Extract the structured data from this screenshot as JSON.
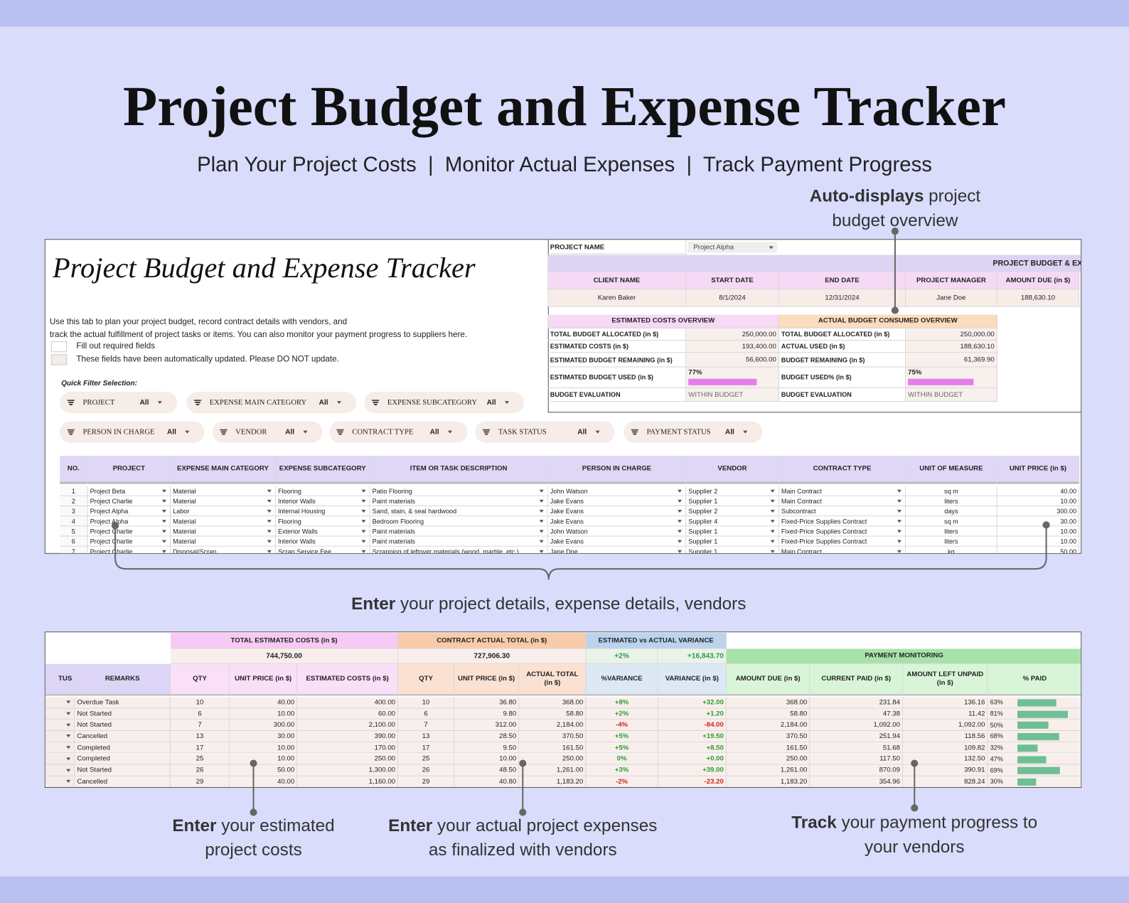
{
  "header": {
    "title": "Project Budget and Expense Tracker",
    "subtitle": "Plan Your Project Costs  |  Monitor Actual Expenses  |  Track Payment Progress"
  },
  "callouts": [
    {
      "bold": "Auto-displays",
      "lines": [
        "project",
        "budget overview"
      ]
    },
    {
      "bold": "Enter",
      "lines": [
        "your project details, expense details, vendors"
      ]
    },
    {
      "bold": "Enter",
      "lines": [
        "your estimated",
        "project costs"
      ]
    },
    {
      "bold": "Enter",
      "lines": [
        "your actual project expenses",
        "as finalized with vendors"
      ]
    },
    {
      "bold": "Track",
      "lines": [
        "your payment progress to",
        "your vendors"
      ]
    }
  ],
  "sheet1": {
    "title": "Project Budget and Expense Tracker",
    "instructions": [
      "Use this tab to plan your project budget, record contract details with vendors, and",
      "track the actual fulfillment of project tasks or items. You can also monitor your payment progress to suppliers here."
    ],
    "legend": [
      "Fill out required fields",
      "These fields have been automatically updated. Please DO NOT update."
    ],
    "filter_label": "Quick Filter Selection:",
    "filters": [
      {
        "label": "PROJECT",
        "value": "All"
      },
      {
        "label": "EXPENSE MAIN CATEGORY",
        "value": "All"
      },
      {
        "label": "EXPENSE SUBCATEGORY",
        "value": "All"
      },
      {
        "label": "PERSON IN CHARGE",
        "value": "All"
      },
      {
        "label": "VENDOR",
        "value": "All"
      },
      {
        "label": "CONTRACT TYPE",
        "value": "All"
      },
      {
        "label": "TASK STATUS",
        "value": "All"
      },
      {
        "label": "PAYMENT STATUS",
        "value": "All"
      }
    ],
    "project_name": {
      "label": "PROJECT NAME",
      "value": "Project Alpha"
    },
    "banner": "PROJECT BUDGET & EX",
    "info": {
      "headers": [
        "CLIENT NAME",
        "START DATE",
        "END DATE",
        "PROJECT MANAGER",
        "AMOUNT DUE (in $)"
      ],
      "values": [
        "Karen Baker",
        "8/1/2024",
        "12/31/2024",
        "Jane Doe",
        "188,630.10"
      ]
    },
    "estimated": {
      "title": "ESTIMATED COSTS OVERVIEW",
      "rows": [
        [
          "TOTAL BUDGET ALLOCATED (in $)",
          "250,000.00"
        ],
        [
          "ESTIMATED COSTS (in $)",
          "193,400.00"
        ],
        [
          "ESTIMATED BUDGET REMAINING (in $)",
          "56,600.00"
        ],
        [
          "ESTIMATED BUDGET USED (in $)",
          {
            "value": 77,
            "label": "77%"
          }
        ],
        [
          "BUDGET EVALUATION",
          "WITHIN BUDGET"
        ]
      ]
    },
    "actual": {
      "title": "ACTUAL BUDGET CONSUMED OVERVIEW",
      "rows": [
        [
          "TOTAL BUDGET ALLOCATED (in $)",
          "250,000.00"
        ],
        [
          "ACTUAL USED (in $)",
          "188,630.10"
        ],
        [
          "BUDGET REMAINING (in $)",
          "61,369.90"
        ],
        [
          "BUDGET USED% (in $)",
          {
            "value": 75,
            "label": "75%"
          }
        ],
        [
          "BUDGET EVALUATION",
          "WITHIN BUDGET"
        ]
      ]
    },
    "table": {
      "headers": [
        "NO.",
        "PROJECT",
        "EXPENSE MAIN CATEGORY",
        "EXPENSE SUBCATEGORY",
        "ITEM OR TASK DESCRIPTION",
        "PERSON IN CHARGE",
        "VENDOR",
        "CONTRACT TYPE",
        "UNIT OF MEASURE",
        "UNIT PRICE (in $)"
      ],
      "rows": [
        [
          1,
          "Project Beta",
          "Material",
          "Flooring",
          "Patio Flooring",
          "John Watson",
          "Supplier 2",
          "Main Contract",
          "sq m",
          "40.00"
        ],
        [
          2,
          "Project Charlie",
          "Material",
          "Interior Walls",
          "Paint materials",
          "Jake Evans",
          "Supplier 1",
          "Main Contract",
          "liters",
          "10.00"
        ],
        [
          3,
          "Project Alpha",
          "Labor",
          "Internal Housing",
          "Sand, stain, & seal hardwood",
          "Jake Evans",
          "Supplier 2",
          "Subcontract",
          "days",
          "300.00"
        ],
        [
          4,
          "Project Alpha",
          "Material",
          "Flooring",
          "Bedroom Flooring",
          "Jake Evans",
          "Supplier 4",
          "Fixed-Price Supplies Contract",
          "sq m",
          "30.00"
        ],
        [
          5,
          "Project Charlie",
          "Material",
          "Exterior Walls",
          "Paint materials",
          "John Watson",
          "Supplier 1",
          "Fixed-Price Supplies Contract",
          "liters",
          "10.00"
        ],
        [
          6,
          "Project Charlie",
          "Material",
          "Interior Walls",
          "Paint materials",
          "Jake Evans",
          "Supplier 1",
          "Fixed-Price Supplies Contract",
          "liters",
          "10.00"
        ],
        [
          7,
          "Project Charlie",
          "Disposal/Scrap",
          "Scrap Service Fee",
          "Scrapping of leftover materials (wood, marble, etc.)",
          "Jane Doe",
          "Supplier 1",
          "Main Contract",
          "kg",
          "50.00"
        ]
      ]
    }
  },
  "sheet2": {
    "groups": [
      {
        "title": "TOTAL ESTIMATED COSTS (in $)",
        "totals": [
          "744,750.00"
        ]
      },
      {
        "title": "CONTRACT ACTUAL TOTAL (in $)",
        "totals": [
          "727,906.30"
        ]
      },
      {
        "title": "ESTIMATED vs ACTUAL VARIANCE",
        "totals": [
          "+2%",
          "+16,843.70"
        ]
      },
      {
        "title": "PAYMENT MONITORING"
      }
    ],
    "headers": [
      "TUS",
      "REMARKS",
      "QTY",
      "UNIT PRICE (in $)",
      "ESTIMATED COSTS (in $)",
      "QTY",
      "UNIT PRICE (in $)",
      "ACTUAL TOTAL (in $)",
      "%VARIANCE",
      "VARIANCE (in $)",
      "AMOUNT DUE (in $)",
      "CURRENT PAID (in $)",
      "AMOUNT LEFT UNPAID (in $)",
      "% PAID"
    ],
    "rows": [
      [
        "Overdue Task",
        "10",
        "40.00",
        "400.00",
        "10",
        "36.80",
        "368.00",
        "+8%",
        "+32.00",
        "368.00",
        "231.84",
        "136.16",
        {
          "value": 63,
          "label": "63%"
        }
      ],
      [
        "Not Started",
        "6",
        "10.00",
        "60.00",
        "6",
        "9.80",
        "58.80",
        "+2%",
        "+1.20",
        "58.80",
        "47.38",
        "11.42",
        {
          "value": 81,
          "label": "81%"
        }
      ],
      [
        "Not Started",
        "7",
        "300.00",
        "2,100.00",
        "7",
        "312.00",
        "2,184.00",
        "-4%",
        "-84.00",
        "2,184.00",
        "1,092.00",
        "1,092.00",
        {
          "value": 50,
          "label": "50%"
        }
      ],
      [
        "Cancelled",
        "13",
        "30.00",
        "390.00",
        "13",
        "28.50",
        "370.50",
        "+5%",
        "+19.50",
        "370.50",
        "251.94",
        "118.56",
        {
          "value": 68,
          "label": "68%"
        }
      ],
      [
        "Completed",
        "17",
        "10.00",
        "170.00",
        "17",
        "9.50",
        "161.50",
        "+5%",
        "+8.50",
        "161.50",
        "51.68",
        "109.82",
        {
          "value": 32,
          "label": "32%"
        }
      ],
      [
        "Completed",
        "25",
        "10.00",
        "250.00",
        "25",
        "10.00",
        "250.00",
        "0%",
        "+0.00",
        "250.00",
        "117.50",
        "132.50",
        {
          "value": 47,
          "label": "47%"
        }
      ],
      [
        "Not Started",
        "26",
        "50.00",
        "1,300.00",
        "26",
        "48.50",
        "1,261.00",
        "+3%",
        "+39.00",
        "1,261.00",
        "870.09",
        "390.91",
        {
          "value": 69,
          "label": "69%"
        }
      ],
      [
        "Cancelled",
        "29",
        "40.00",
        "1,160.00",
        "29",
        "40.80",
        "1,183.20",
        "-2%",
        "-23.20",
        "1,183.20",
        "354.96",
        "828.24",
        {
          "value": 30,
          "label": "30%"
        }
      ]
    ]
  }
}
